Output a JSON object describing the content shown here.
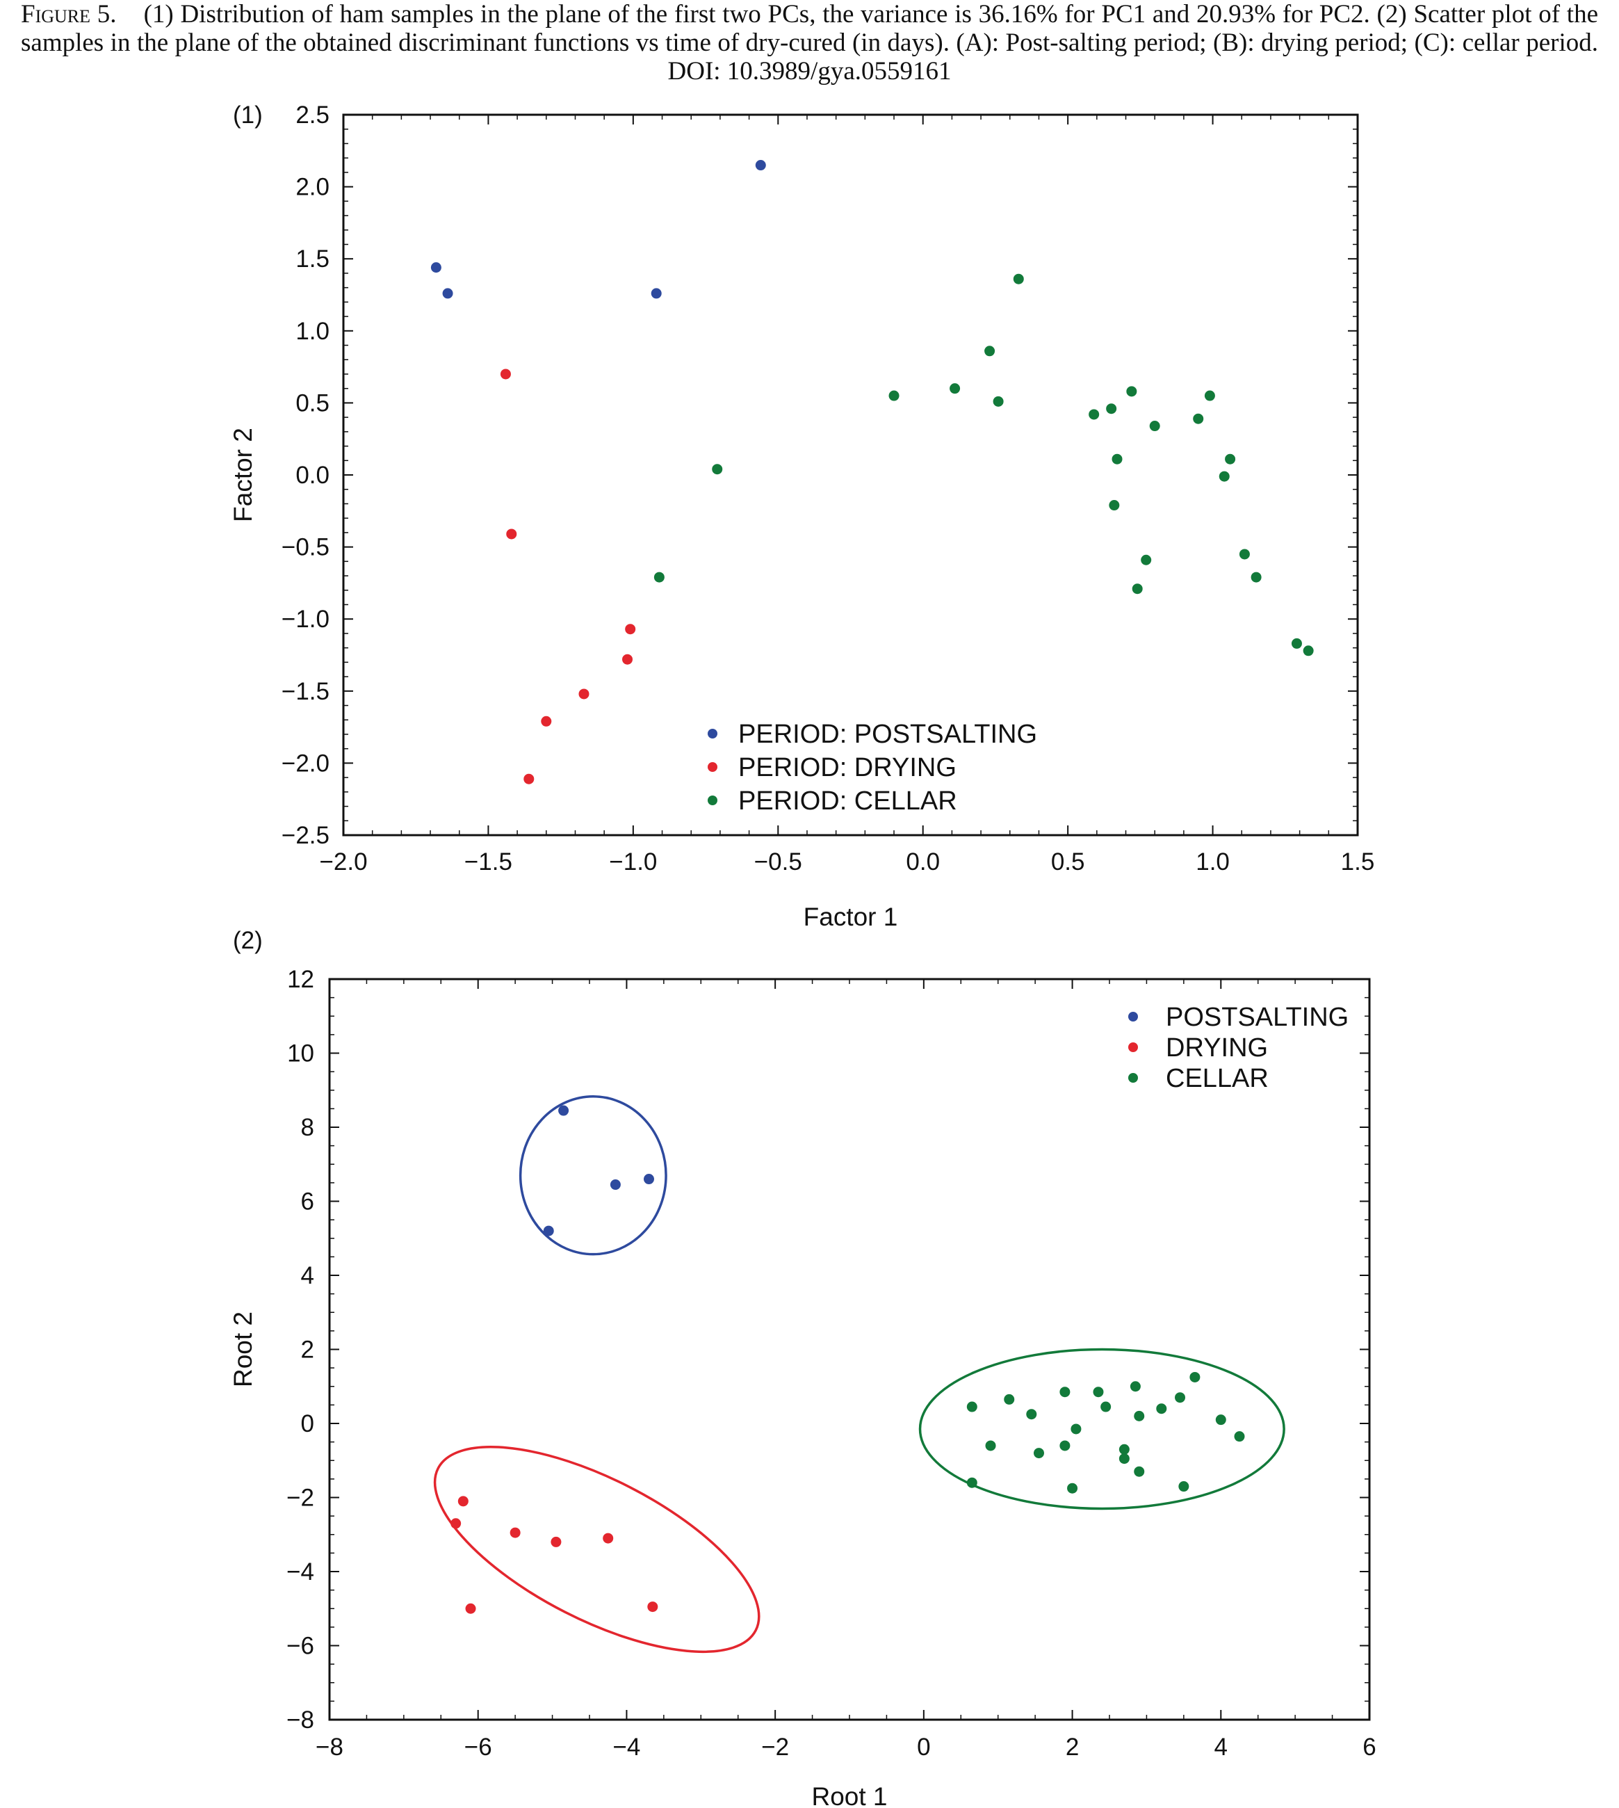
{
  "caption": {
    "lead": "Figure 5.",
    "text": "(1) Distribution of ham samples in the plane of the first two PCs, the variance is 36.16% for PC1 and 20.93% for PC2. (2) Scatter plot of the samples in the plane of the obtained discriminant functions vs time of dry-cured (in days). (A): Post-salting period; (B): drying period; (C): cellar period. DOI: 10.3989/gya.0559161"
  },
  "colors": {
    "postsalting": "#2e4a9e",
    "drying": "#e3262e",
    "cellar": "#127a3a"
  },
  "chart_data": [
    {
      "panel_label": "(1)",
      "type": "scatter",
      "xlabel": "Factor 1",
      "ylabel": "Factor 2",
      "xlim": [
        -2.0,
        1.5
      ],
      "ylim": [
        -2.5,
        2.5
      ],
      "xticks": [
        -2.0,
        -1.5,
        -1.0,
        -0.5,
        0.0,
        0.5,
        1.0,
        1.5
      ],
      "yticks": [
        2.5,
        2.0,
        1.5,
        1.0,
        0.5,
        0.0,
        -0.5,
        -1.0,
        -1.5,
        -2.0,
        -2.5
      ],
      "xtick_labels": [
        "−2.0",
        "−1.5",
        "−1.0",
        "−0.5",
        "0.0",
        "0.5",
        "1.0",
        "1.5"
      ],
      "ytick_labels": [
        "2.5",
        "2.0",
        "1.5",
        "1.0",
        "0.5",
        "0.0",
        "−0.5",
        "−1.0",
        "−1.5",
        "−2.0",
        "−2.5"
      ],
      "legend_position": "bottom-center",
      "series": [
        {
          "name": "PERIOD: POSTSALTING",
          "key": "postsalting",
          "points": [
            [
              -1.68,
              1.44
            ],
            [
              -1.64,
              1.26
            ],
            [
              -0.92,
              1.26
            ],
            [
              -0.56,
              2.15
            ]
          ]
        },
        {
          "name": "PERIOD: DRYING",
          "key": "drying",
          "points": [
            [
              -1.44,
              0.7
            ],
            [
              -1.42,
              -0.41
            ],
            [
              -1.01,
              -1.07
            ],
            [
              -1.02,
              -1.28
            ],
            [
              -1.17,
              -1.52
            ],
            [
              -1.3,
              -1.71
            ],
            [
              -1.36,
              -2.11
            ]
          ]
        },
        {
          "name": "PERIOD: CELLAR",
          "key": "cellar",
          "points": [
            [
              0.33,
              1.36
            ],
            [
              0.23,
              0.86
            ],
            [
              0.11,
              0.6
            ],
            [
              -0.1,
              0.55
            ],
            [
              0.26,
              0.51
            ],
            [
              -0.71,
              0.04
            ],
            [
              -0.91,
              -0.71
            ],
            [
              0.59,
              0.42
            ],
            [
              0.65,
              0.46
            ],
            [
              0.72,
              0.58
            ],
            [
              0.8,
              0.34
            ],
            [
              0.95,
              0.39
            ],
            [
              0.99,
              0.55
            ],
            [
              1.06,
              0.11
            ],
            [
              1.04,
              -0.01
            ],
            [
              0.67,
              0.11
            ],
            [
              0.66,
              -0.21
            ],
            [
              0.77,
              -0.59
            ],
            [
              0.74,
              -0.79
            ],
            [
              1.11,
              -0.55
            ],
            [
              1.15,
              -0.71
            ],
            [
              1.29,
              -1.17
            ],
            [
              1.33,
              -1.22
            ]
          ]
        }
      ]
    },
    {
      "panel_label": "(2)",
      "type": "scatter",
      "xlabel": "Root 1",
      "ylabel": "Root 2",
      "xlim": [
        -8,
        6
      ],
      "ylim": [
        -8,
        12
      ],
      "xticks": [
        -8,
        -6,
        -4,
        -2,
        0,
        2,
        4,
        6
      ],
      "yticks": [
        12,
        10,
        8,
        6,
        4,
        2,
        0,
        -2,
        -4,
        -6,
        -8
      ],
      "xtick_labels": [
        "−8",
        "−6",
        "−4",
        "−2",
        "0",
        "2",
        "4",
        "6"
      ],
      "ytick_labels": [
        "12",
        "10",
        "8",
        "6",
        "4",
        "2",
        "0",
        "−2",
        "−4",
        "−6",
        "−8"
      ],
      "legend_position": "top-right",
      "series": [
        {
          "name": "POSTSALTING",
          "key": "postsalting",
          "points": [
            [
              -4.85,
              8.45
            ],
            [
              -4.15,
              6.45
            ],
            [
              -3.7,
              6.6
            ],
            [
              -5.05,
              5.2
            ]
          ],
          "ellipse": {
            "cx": -4.45,
            "cy": 6.7,
            "rx": 0.98,
            "ry": 2.13,
            "angle": 0
          }
        },
        {
          "name": "DRYING",
          "key": "drying",
          "points": [
            [
              -6.2,
              -2.1
            ],
            [
              -6.3,
              -2.7
            ],
            [
              -5.5,
              -2.95
            ],
            [
              -4.95,
              -3.2
            ],
            [
              -4.25,
              -3.1
            ],
            [
              -6.1,
              -5.0
            ],
            [
              -3.65,
              -4.95
            ]
          ],
          "ellipse": {
            "cx": -4.4,
            "cy": -3.4,
            "rx": 2.4,
            "ry": 1.9,
            "angle": 27
          }
        },
        {
          "name": "CELLAR",
          "key": "cellar",
          "points": [
            [
              0.65,
              0.45
            ],
            [
              1.15,
              0.65
            ],
            [
              1.45,
              0.25
            ],
            [
              1.9,
              0.85
            ],
            [
              2.35,
              0.85
            ],
            [
              2.45,
              0.45
            ],
            [
              2.85,
              1.0
            ],
            [
              3.2,
              0.4
            ],
            [
              3.45,
              0.7
            ],
            [
              3.65,
              1.25
            ],
            [
              0.9,
              -0.6
            ],
            [
              1.55,
              -0.8
            ],
            [
              1.9,
              -0.6
            ],
            [
              2.05,
              -0.15
            ],
            [
              2.7,
              -0.7
            ],
            [
              2.9,
              0.2
            ],
            [
              4.0,
              0.1
            ],
            [
              4.25,
              -0.35
            ],
            [
              2.7,
              -0.95
            ],
            [
              2.9,
              -1.3
            ],
            [
              0.65,
              -1.6
            ],
            [
              2.0,
              -1.75
            ],
            [
              3.5,
              -1.7
            ]
          ],
          "ellipse": {
            "cx": 2.4,
            "cy": -0.15,
            "rx": 2.45,
            "ry": 2.15,
            "angle": 0
          }
        }
      ]
    }
  ]
}
